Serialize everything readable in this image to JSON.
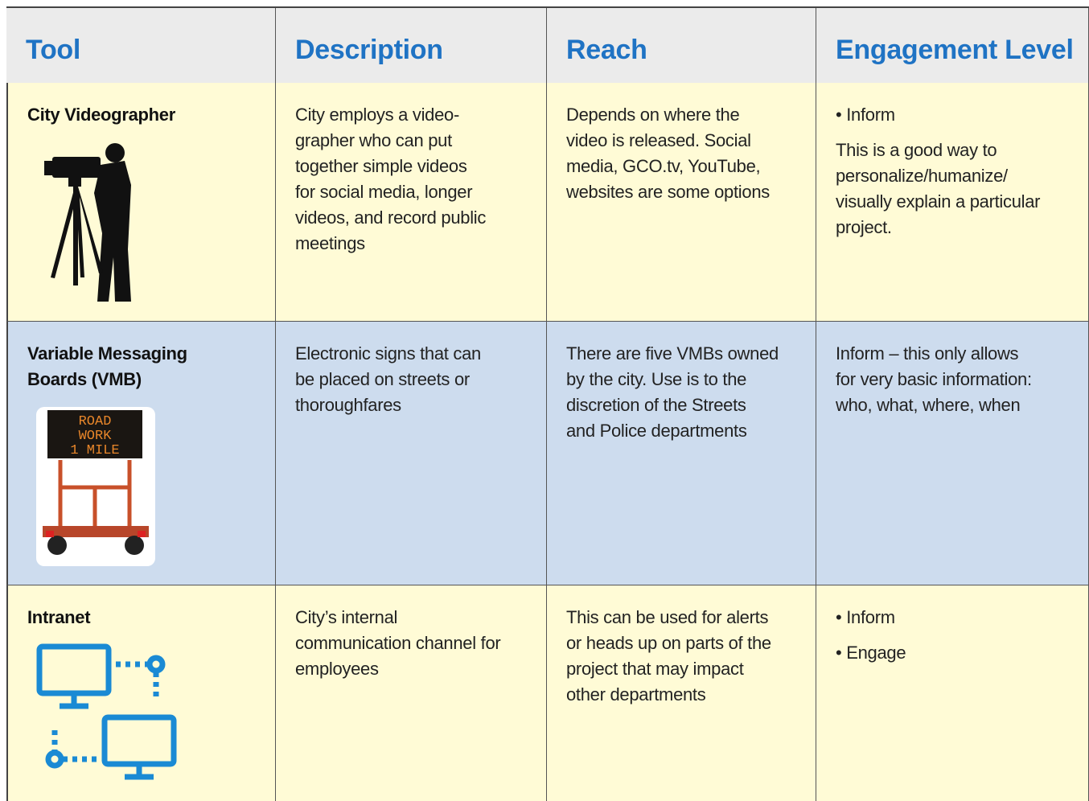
{
  "table": {
    "header": [
      "Tool",
      "Description",
      "Reach",
      "Engagement Level"
    ],
    "rows": [
      {
        "tool": [
          "City Videographer"
        ],
        "description": [
          "City employs a video-",
          "grapher who can put",
          "together simple videos",
          "for social media, longer",
          "videos, and record public",
          "meetings"
        ],
        "reach": [
          "Depends on where the",
          "video is released.  Social",
          "media, GCO.tv, YouTube,",
          "websites are some options"
        ],
        "engagement": [
          [
            "• Inform"
          ],
          [
            "This is a good way to",
            "personalize/humanize/",
            "visually explain a particular",
            "project."
          ]
        ]
      },
      {
        "tool": [
          "Variable Messaging",
          "Boards (VMB)"
        ],
        "image_text": [
          "ROAD",
          "WORK",
          "1 MILE"
        ],
        "description": [
          "Electronic signs that can",
          "be placed on streets or",
          "thoroughfares"
        ],
        "reach": [
          "There are five VMBs owned",
          "by the city. Use is to the",
          "discretion of the Streets",
          "and Police departments"
        ],
        "engagement": [
          [
            "Inform – this only allows",
            "for very basic information:",
            "who, what, where, when"
          ]
        ]
      },
      {
        "tool": [
          "Intranet"
        ],
        "description": [
          "City’s internal",
          "communication channel for",
          "employees"
        ],
        "reach": [
          "This can be used for alerts",
          "or heads up on parts of the",
          "project that may impact",
          "other departments"
        ],
        "engagement": [
          [
            "• Inform"
          ],
          [
            "• Engage"
          ]
        ]
      }
    ]
  }
}
